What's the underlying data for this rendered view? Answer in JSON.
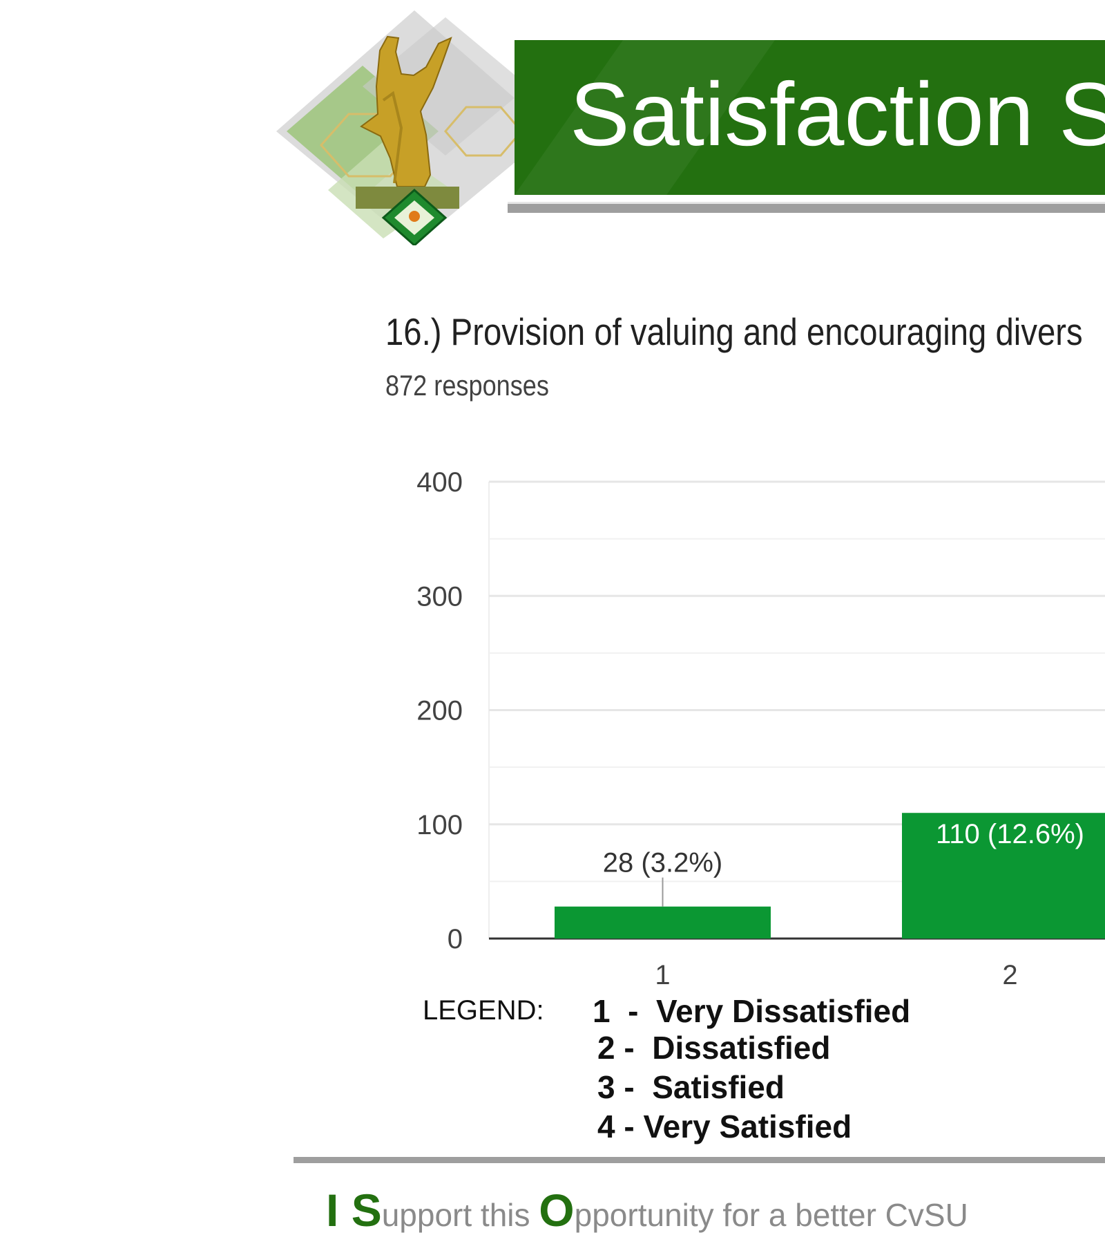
{
  "header": {
    "title": "Satisfaction S"
  },
  "question": {
    "title": "16.) Provision of valuing and encouraging  divers",
    "responses": "872 responses"
  },
  "chart_data": {
    "type": "bar",
    "categories": [
      "1",
      "2"
    ],
    "values": [
      28,
      110
    ],
    "data_labels": [
      "28 (3.2%)",
      "110 (12.6%)"
    ],
    "y_ticks": [
      "0",
      "100",
      "200",
      "300",
      "400"
    ],
    "ylim": [
      0,
      400
    ],
    "grid": true,
    "bar_color": "#0b9733"
  },
  "legend": {
    "label": "LEGEND:",
    "items": [
      "1  -  Very Dissatisfied",
      "2 -  Dissatisfied",
      "3 -  Satisfied",
      "4 - Very Satisfied"
    ]
  },
  "footer": {
    "slogan_parts": [
      "I ",
      "S",
      "upport this ",
      "O",
      "pportunity for a better CvSU"
    ]
  },
  "colors": {
    "brand_green": "#237010",
    "bar_green": "#0b9733"
  }
}
